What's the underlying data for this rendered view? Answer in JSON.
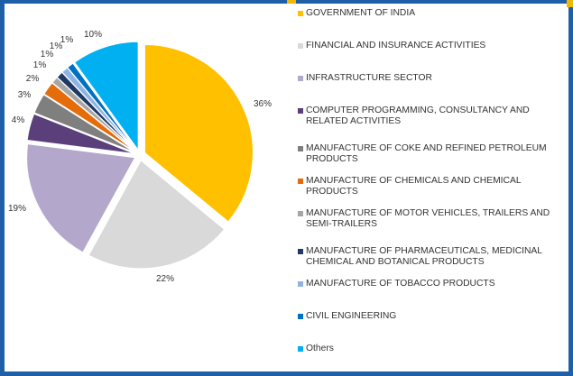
{
  "chart_data": {
    "type": "pie",
    "categories": [
      "GOVERNMENT OF INDIA",
      "FINANCIAL AND INSURANCE ACTIVITIES",
      "INFRASTRUCTURE SECTOR",
      "COMPUTER PROGRAMMING, CONSULTANCY AND RELATED ACTIVITIES",
      "MANUFACTURE OF COKE AND REFINED PETROLEUM PRODUCTS",
      "MANUFACTURE OF CHEMICALS AND CHEMICAL PRODUCTS",
      "MANUFACTURE OF MOTOR VEHICLES, TRAILERS AND SEMI-TRAILERS",
      "MANUFACTURE OF PHARMACEUTICALS, MEDICINAL CHEMICAL AND BOTANICAL PRODUCTS",
      "MANUFACTURE OF TOBACCO PRODUCTS",
      "CIVIL ENGINEERING",
      "Others"
    ],
    "values": [
      36,
      22,
      19,
      4,
      3,
      2,
      1,
      1,
      1,
      1,
      10
    ],
    "labels": [
      "36%",
      "22%",
      "19%",
      "4%",
      "3%",
      "2%",
      "1%",
      "1%",
      "1%",
      "1%",
      "10%"
    ],
    "colors": [
      "#ffc000",
      "#d9d9d9",
      "#b4a7cc",
      "#5b3f7a",
      "#7f7f7f",
      "#e46c0a",
      "#a6a6a6",
      "#1f3864",
      "#8eb4e3",
      "#0070c0",
      "#00b0f0"
    ],
    "title": "",
    "legend_position": "right",
    "exploded": true
  }
}
